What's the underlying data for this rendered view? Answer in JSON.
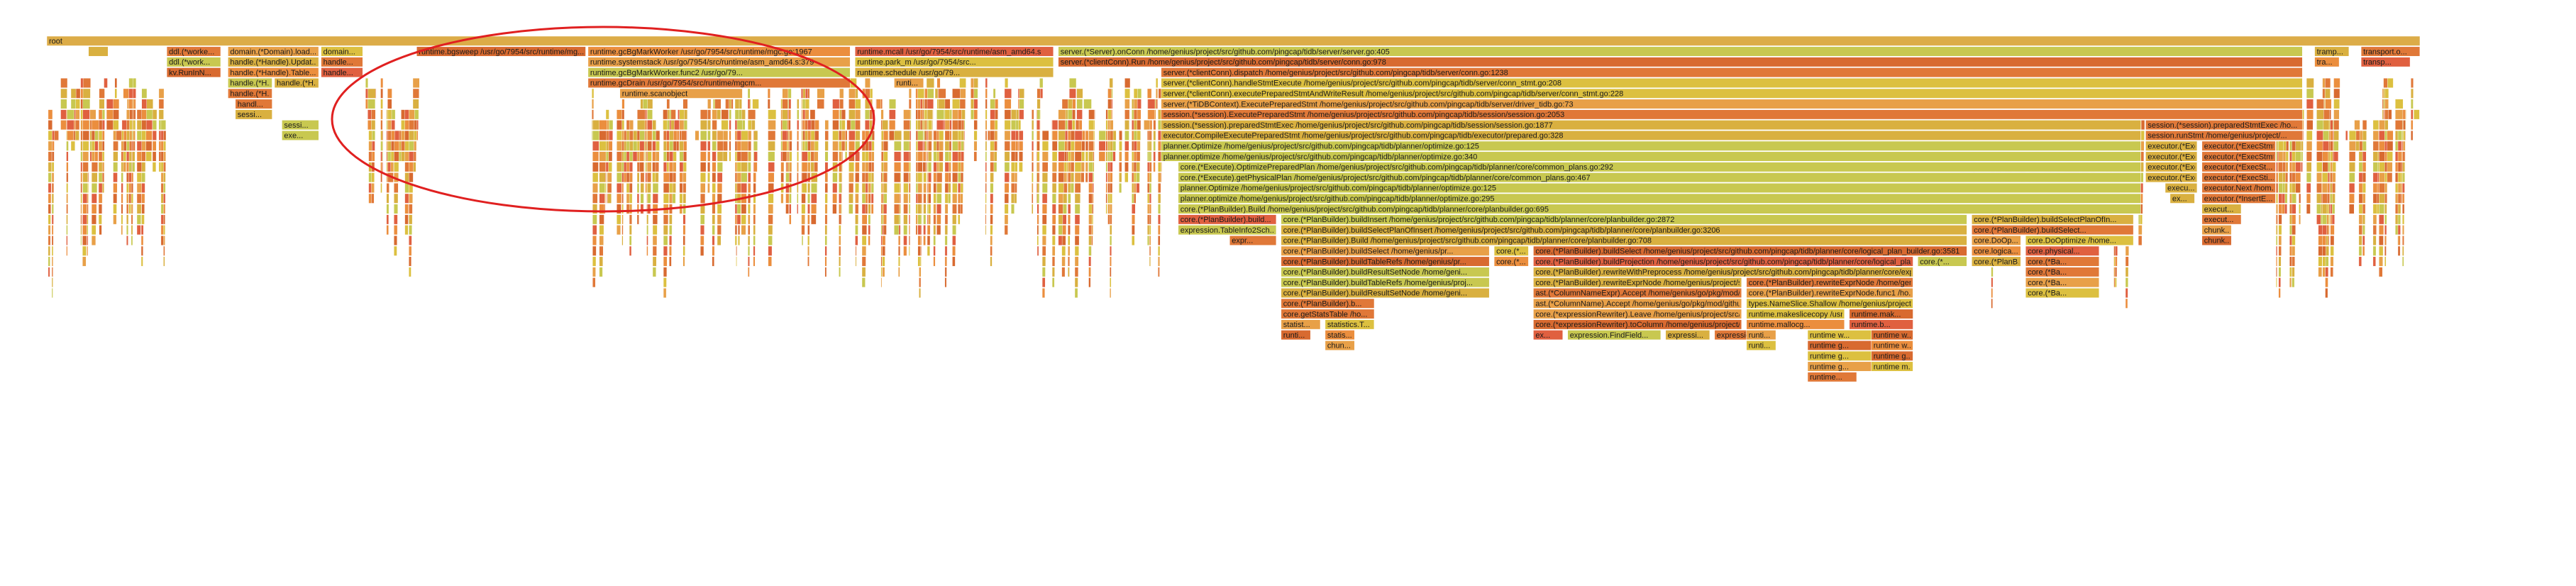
{
  "chart_data": {
    "type": "flamegraph",
    "unit": "fraction of total samples",
    "palette": [
      "#e8a048",
      "#e07838",
      "#d9b040",
      "#c8c850",
      "#e06040",
      "#eb8e3e",
      "#d86a30",
      "#dcc040"
    ],
    "annotation": {
      "shape": "ellipse",
      "color": "#e02020",
      "encloses": "runtime.gcBgMarkWorker / runtime.mcall region"
    },
    "frames": [
      {
        "name": "root",
        "depth": 0,
        "start": 0.0,
        "width": 0.969
      },
      {
        "name": "",
        "depth": 1,
        "start": 0.017,
        "width": 0.008
      },
      {
        "name": "ddl.(*worke...",
        "depth": 1,
        "start": 0.049,
        "width": 0.022
      },
      {
        "name": "domain.(*Domain).load...",
        "depth": 1,
        "start": 0.074,
        "width": 0.037
      },
      {
        "name": "domain...",
        "depth": 1,
        "start": 0.112,
        "width": 0.017
      },
      {
        "name": "runtime.bgsweep /usr/go/7954/src/runtime/mg...",
        "depth": 1,
        "start": 0.151,
        "width": 0.069
      },
      {
        "name": "runtime.gcBgMarkWorker /usr/go/7954/src/runtime/mgc.go:1967",
        "depth": 1,
        "start": 0.221,
        "width": 0.107
      },
      {
        "name": "runtime.mcall /usr/go/7954/src/runtime/asm_amd64.s",
        "depth": 1,
        "start": 0.33,
        "width": 0.081
      },
      {
        "name": "server.(*Server).onConn /home/genius/project/src/github.com/pingcap/tidb/server/server.go:405",
        "depth": 1,
        "start": 0.413,
        "width": 0.508
      },
      {
        "name": "tramp...",
        "depth": 1,
        "start": 0.926,
        "width": 0.014
      },
      {
        "name": "transport.o...",
        "depth": 1,
        "start": 0.945,
        "width": 0.024
      },
      {
        "name": "ddl.(*work...",
        "depth": 2,
        "start": 0.049,
        "width": 0.022
      },
      {
        "name": "handle.(*Handle).Updat...",
        "depth": 2,
        "start": 0.074,
        "width": 0.037
      },
      {
        "name": "handle...",
        "depth": 2,
        "start": 0.112,
        "width": 0.017
      },
      {
        "name": "runtime.systemstack /usr/go/7954/src/runtime/asm_amd64.s:379",
        "depth": 2,
        "start": 0.221,
        "width": 0.107
      },
      {
        "name": "runtime.park_m /usr/go/7954/src...",
        "depth": 2,
        "start": 0.33,
        "width": 0.081
      },
      {
        "name": "server.(*clientConn).Run /home/genius/project/src/github.com/pingcap/tidb/server/conn.go:978",
        "depth": 2,
        "start": 0.413,
        "width": 0.508
      },
      {
        "name": "tra...",
        "depth": 2,
        "start": 0.926,
        "width": 0.01
      },
      {
        "name": "transp...",
        "depth": 2,
        "start": 0.945,
        "width": 0.02
      },
      {
        "name": "kv.RunInN...",
        "depth": 3,
        "start": 0.049,
        "width": 0.022
      },
      {
        "name": "handle.(*Handle).Table...",
        "depth": 3,
        "start": 0.074,
        "width": 0.037
      },
      {
        "name": "handle...",
        "depth": 3,
        "start": 0.112,
        "width": 0.017
      },
      {
        "name": "runtime.gcBgMarkWorker.func2 /usr/go/79...",
        "depth": 3,
        "start": 0.221,
        "width": 0.107
      },
      {
        "name": "runtime.schedule /usr/go/79...",
        "depth": 3,
        "start": 0.33,
        "width": 0.081
      },
      {
        "name": "server.(*clientConn).dispatch /home/genius/project/src/github.com/pingcap/tidb/server/conn.go:1238",
        "depth": 3,
        "start": 0.455,
        "width": 0.466
      },
      {
        "name": "handle.(*H...",
        "depth": 4,
        "start": 0.074,
        "width": 0.018
      },
      {
        "name": "handle.(*H...",
        "depth": 4,
        "start": 0.093,
        "width": 0.018
      },
      {
        "name": "runtime.gcDrain /usr/go/7954/src/runtime/mgcm...",
        "depth": 4,
        "start": 0.221,
        "width": 0.107
      },
      {
        "name": "runti...",
        "depth": 4,
        "start": 0.346,
        "width": 0.012
      },
      {
        "name": "server.(*clientConn).handleStmtExecute /home/genius/project/src/github.com/pingcap/tidb/server/conn_stmt.go:208",
        "depth": 4,
        "start": 0.455,
        "width": 0.466
      },
      {
        "name": "handle.(*H...",
        "depth": 5,
        "start": 0.074,
        "width": 0.018
      },
      {
        "name": "runtime.scanobject",
        "depth": 5,
        "start": 0.234,
        "width": 0.05
      },
      {
        "name": "server.(*clientConn).executePreparedStmtAndWriteResult /home/genius/project/src/github.com/pingcap/tidb/server/conn_stmt.go:228",
        "depth": 5,
        "start": 0.455,
        "width": 0.466
      },
      {
        "name": "handl...",
        "depth": 6,
        "start": 0.077,
        "width": 0.015
      },
      {
        "name": "server.(*TiDBContext).ExecutePreparedStmt /home/genius/project/src/github.com/pingcap/tidb/server/driver_tidb.go:73",
        "depth": 6,
        "start": 0.455,
        "width": 0.466
      },
      {
        "name": "sessi...",
        "depth": 7,
        "start": 0.077,
        "width": 0.015
      },
      {
        "name": "session.(*session).ExecutePreparedStmt /home/genius/project/src/github.com/pingcap/tidb/session/session.go:2053",
        "depth": 7,
        "start": 0.455,
        "width": 0.466
      },
      {
        "name": "sessi...",
        "depth": 8,
        "start": 0.096,
        "width": 0.015
      },
      {
        "name": "session.(*session).preparedStmtExec /home/genius/project/src/github.com/pingcap/tidb/session/session.go:1877",
        "depth": 8,
        "start": 0.455,
        "width": 0.4
      },
      {
        "name": "session.(*session).preparedStmtExec /ho...",
        "depth": 8,
        "start": 0.857,
        "width": 0.064
      },
      {
        "name": "exe...",
        "depth": 9,
        "start": 0.096,
        "width": 0.015
      },
      {
        "name": "executor.CompileExecutePreparedStmt /home/genius/project/src/github.com/pingcap/tidb/executor/prepared.go:328",
        "depth": 9,
        "start": 0.455,
        "width": 0.4
      },
      {
        "name": "session.runStmt /home/genius/project/...",
        "depth": 9,
        "start": 0.857,
        "width": 0.064
      },
      {
        "name": "planner.Optimize /home/genius/project/src/github.com/pingcap/tidb/planner/optimize.go:125",
        "depth": 10,
        "start": 0.455,
        "width": 0.4
      },
      {
        "name": "executor.(*ExecStmt)...",
        "depth": 10,
        "start": 0.857,
        "width": 0.021
      },
      {
        "name": "executor.(*ExecStmt...",
        "depth": 10,
        "start": 0.88,
        "width": 0.03
      },
      {
        "name": "planner.optimize /home/genius/project/src/github.com/pingcap/tidb/planner/optimize.go:340",
        "depth": 11,
        "start": 0.455,
        "width": 0.4
      },
      {
        "name": "executor.(*ExecStmt)...",
        "depth": 11,
        "start": 0.857,
        "width": 0.021
      },
      {
        "name": "executor.(*ExecStmt...",
        "depth": 11,
        "start": 0.88,
        "width": 0.03
      },
      {
        "name": "core.(*Execute).OptimizePreparedPlan /home/genius/project/src/github.com/pingcap/tidb/planner/core/common_plans.go:292",
        "depth": 12,
        "start": 0.462,
        "width": 0.393
      },
      {
        "name": "executor.(*ExecStmt)...",
        "depth": 12,
        "start": 0.857,
        "width": 0.021
      },
      {
        "name": "executor.(*ExecSt...",
        "depth": 12,
        "start": 0.88,
        "width": 0.03
      },
      {
        "name": "core.(*Execute).getPhysicalPlan /home/genius/project/src/github.com/pingcap/tidb/planner/core/common_plans.go:467",
        "depth": 13,
        "start": 0.462,
        "width": 0.393
      },
      {
        "name": "executor.(*ExecStmt)...",
        "depth": 13,
        "start": 0.857,
        "width": 0.021
      },
      {
        "name": "executor.(*ExecSti...",
        "depth": 13,
        "start": 0.88,
        "width": 0.03
      },
      {
        "name": "planner.Optimize /home/genius/project/src/github.com/pingcap/tidb/planner/optimize.go:125",
        "depth": 14,
        "start": 0.462,
        "width": 0.393
      },
      {
        "name": "execu...",
        "depth": 14,
        "start": 0.865,
        "width": 0.013
      },
      {
        "name": "executor.Next /hom...",
        "depth": 14,
        "start": 0.88,
        "width": 0.03
      },
      {
        "name": "planner.optimize /home/genius/project/src/github.com/pingcap/tidb/planner/optimize.go:295",
        "depth": 15,
        "start": 0.462,
        "width": 0.393
      },
      {
        "name": "ex...",
        "depth": 15,
        "start": 0.867,
        "width": 0.01
      },
      {
        "name": "executor.(*InsertE...",
        "depth": 15,
        "start": 0.88,
        "width": 0.03
      },
      {
        "name": "core.(*PlanBuilder).Build /home/genius/project/src/github.com/pingcap/tidb/planner/core/planbuilder.go:695",
        "depth": 16,
        "start": 0.462,
        "width": 0.393
      },
      {
        "name": "execut...",
        "depth": 16,
        "start": 0.88,
        "width": 0.016
      },
      {
        "name": "core.(*PlanBuilder).build...",
        "depth": 17,
        "start": 0.462,
        "width": 0.04
      },
      {
        "name": "core.(*PlanBuilder).buildInsert /home/genius/project/src/github.com/pingcap/tidb/planner/core/planbuilder.go:2872",
        "depth": 17,
        "start": 0.504,
        "width": 0.28
      },
      {
        "name": "core.(*PlanBuilder).buildSelectPlanOfIn...",
        "depth": 17,
        "start": 0.786,
        "width": 0.066
      },
      {
        "name": "execut...",
        "depth": 17,
        "start": 0.88,
        "width": 0.016
      },
      {
        "name": "expression.TableInfo2Sch...",
        "depth": 18,
        "start": 0.462,
        "width": 0.04
      },
      {
        "name": "core.(*PlanBuilder).buildSelectPlanOfInsert /home/genius/project/src/github.com/pingcap/tidb/planner/core/planbuilder.go:3206",
        "depth": 18,
        "start": 0.504,
        "width": 0.28
      },
      {
        "name": "core.(*PlanBuilder).buildSelect...",
        "depth": 18,
        "start": 0.786,
        "width": 0.066
      },
      {
        "name": "chunk...",
        "depth": 18,
        "start": 0.88,
        "width": 0.012
      },
      {
        "name": "core.(*PlanBuilder).Build /home/genius/project/src/github.com/pingcap/tidb/planner/core/planbuilder.go:708",
        "depth": 19,
        "start": 0.504,
        "width": 0.28
      },
      {
        "name": "expr...",
        "depth": 19,
        "start": 0.483,
        "width": 0.019
      },
      {
        "name": "core.DoOp...",
        "depth": 19,
        "start": 0.786,
        "width": 0.02
      },
      {
        "name": "core.DoOptimize /home...",
        "depth": 19,
        "start": 0.808,
        "width": 0.044
      },
      {
        "name": "chunk...",
        "depth": 19,
        "start": 0.88,
        "width": 0.012
      },
      {
        "name": "core.(*PlanBuilder).buildSelect /home/genius/pr...",
        "depth": 20,
        "start": 0.504,
        "width": 0.085
      },
      {
        "name": "core.(*...",
        "depth": 20,
        "start": 0.591,
        "width": 0.014
      },
      {
        "name": "core.(*PlanBuilder).buildSelect /home/genius/project/src/github.com/pingcap/tidb/planner/core/logical_plan_builder.go:3581",
        "depth": 20,
        "start": 0.607,
        "width": 0.177
      },
      {
        "name": "core.logica...",
        "depth": 20,
        "start": 0.786,
        "width": 0.02
      },
      {
        "name": "core.physical...",
        "depth": 20,
        "start": 0.808,
        "width": 0.03
      },
      {
        "name": "core.(*PlanBuilder).buildTableRefs /home/genius/pr...",
        "depth": 21,
        "start": 0.504,
        "width": 0.085
      },
      {
        "name": "core.(*...",
        "depth": 21,
        "start": 0.591,
        "width": 0.014
      },
      {
        "name": "core.(*PlanBuilder).buildProjection /home/genius/project/src/github.com/pingcap/tidb/planner/core/logical_plan_builde...",
        "depth": 21,
        "start": 0.607,
        "width": 0.155
      },
      {
        "name": "core.(*...",
        "depth": 21,
        "start": 0.764,
        "width": 0.02
      },
      {
        "name": "core.(*PlanB...",
        "depth": 21,
        "start": 0.786,
        "width": 0.02
      },
      {
        "name": "core.(*Ba...",
        "depth": 21,
        "start": 0.808,
        "width": 0.03
      },
      {
        "name": "core.(*PlanBuilder).buildResultSetNode /home/geni...",
        "depth": 22,
        "start": 0.504,
        "width": 0.085
      },
      {
        "name": "core.(*PlanBuilder).rewriteWithPreprocess /home/genius/project/src/github.com/pingcap/tidb/planner/core/expression...",
        "depth": 22,
        "start": 0.607,
        "width": 0.155
      },
      {
        "name": "core.(*Ba...",
        "depth": 22,
        "start": 0.808,
        "width": 0.03
      },
      {
        "name": "core.(*PlanBuilder).buildTableRefs /home/genius/proj...",
        "depth": 23,
        "start": 0.504,
        "width": 0.085
      },
      {
        "name": "core.(*PlanBuilder).rewriteExprNode /home/genius/project/src/...",
        "depth": 23,
        "start": 0.607,
        "width": 0.085
      },
      {
        "name": "core.(*PlanBuilder).rewriteExprNode /home/genius/...",
        "depth": 23,
        "start": 0.694,
        "width": 0.068
      },
      {
        "name": "core.(*Ba...",
        "depth": 23,
        "start": 0.808,
        "width": 0.03
      },
      {
        "name": "core.(*PlanBuilder).buildResultSetNode /home/geni...",
        "depth": 24,
        "start": 0.504,
        "width": 0.085
      },
      {
        "name": "ast.(*ColumnNameExpr).Accept /home/genius/go/pkg/mod/gith...",
        "depth": 24,
        "start": 0.607,
        "width": 0.085
      },
      {
        "name": "core.(*PlanBuilder).rewriteExprNode.func1 /ho...",
        "depth": 24,
        "start": 0.694,
        "width": 0.068
      },
      {
        "name": "core.(*Ba...",
        "depth": 24,
        "start": 0.808,
        "width": 0.03
      },
      {
        "name": "core.(*PlanBuilder).b...",
        "depth": 25,
        "start": 0.504,
        "width": 0.038
      },
      {
        "name": "ast.(*ColumnName).Accept /home/genius/go/pkg/mod/githu...",
        "depth": 25,
        "start": 0.607,
        "width": 0.085
      },
      {
        "name": "types.NameSlice.Shallow /home/genius/project/...",
        "depth": 25,
        "start": 0.694,
        "width": 0.068
      },
      {
        "name": "core.getStatsTable /ho...",
        "depth": 26,
        "start": 0.504,
        "width": 0.038
      },
      {
        "name": "core.(*expressionRewriter).Leave /home/genius/project/src/git...",
        "depth": 26,
        "start": 0.607,
        "width": 0.085
      },
      {
        "name": "runtime.makeslicecopy /usr...",
        "depth": 26,
        "start": 0.694,
        "width": 0.04
      },
      {
        "name": "runtime.mak...",
        "depth": 26,
        "start": 0.736,
        "width": 0.026
      },
      {
        "name": "statist...",
        "depth": 27,
        "start": 0.504,
        "width": 0.016
      },
      {
        "name": "statistics.T...",
        "depth": 27,
        "start": 0.522,
        "width": 0.02
      },
      {
        "name": "core.(*expressionRewriter).toColumn /home/genius/project/src/gith...",
        "depth": 27,
        "start": 0.607,
        "width": 0.085
      },
      {
        "name": "runtime.mallocg...",
        "depth": 27,
        "start": 0.694,
        "width": 0.04
      },
      {
        "name": "runtime.b...",
        "depth": 27,
        "start": 0.736,
        "width": 0.026
      },
      {
        "name": "runti...",
        "depth": 28,
        "start": 0.504,
        "width": 0.012
      },
      {
        "name": "statis...",
        "depth": 28,
        "start": 0.522,
        "width": 0.012
      },
      {
        "name": "ex...",
        "depth": 28,
        "start": 0.607,
        "width": 0.012
      },
      {
        "name": "expression.FindField...",
        "depth": 28,
        "start": 0.621,
        "width": 0.038
      },
      {
        "name": "expressi...",
        "depth": 28,
        "start": 0.661,
        "width": 0.018
      },
      {
        "name": "expressio...",
        "depth": 28,
        "start": 0.681,
        "width": 0.018
      },
      {
        "name": "runti...",
        "depth": 28,
        "start": 0.694,
        "width": 0.012
      },
      {
        "name": "runtime w...",
        "depth": 28,
        "start": 0.719,
        "width": 0.026
      },
      {
        "name": "runtime w...",
        "depth": 28,
        "start": 0.745,
        "width": 0.017
      },
      {
        "name": "chun...",
        "depth": 29,
        "start": 0.522,
        "width": 0.012
      },
      {
        "name": "runti...",
        "depth": 29,
        "start": 0.694,
        "width": 0.012
      },
      {
        "name": "runtime g...",
        "depth": 29,
        "start": 0.719,
        "width": 0.026
      },
      {
        "name": "runtime w...",
        "depth": 29,
        "start": 0.745,
        "width": 0.017
      },
      {
        "name": "runtime g...",
        "depth": 30,
        "start": 0.719,
        "width": 0.026
      },
      {
        "name": "runtime g...",
        "depth": 30,
        "start": 0.745,
        "width": 0.017
      },
      {
        "name": "runtime g...",
        "depth": 31,
        "start": 0.719,
        "width": 0.026
      },
      {
        "name": "runtime m...",
        "depth": 31,
        "start": 0.745,
        "width": 0.017
      },
      {
        "name": "runtime...",
        "depth": 32,
        "start": 0.719,
        "width": 0.02
      }
    ]
  }
}
